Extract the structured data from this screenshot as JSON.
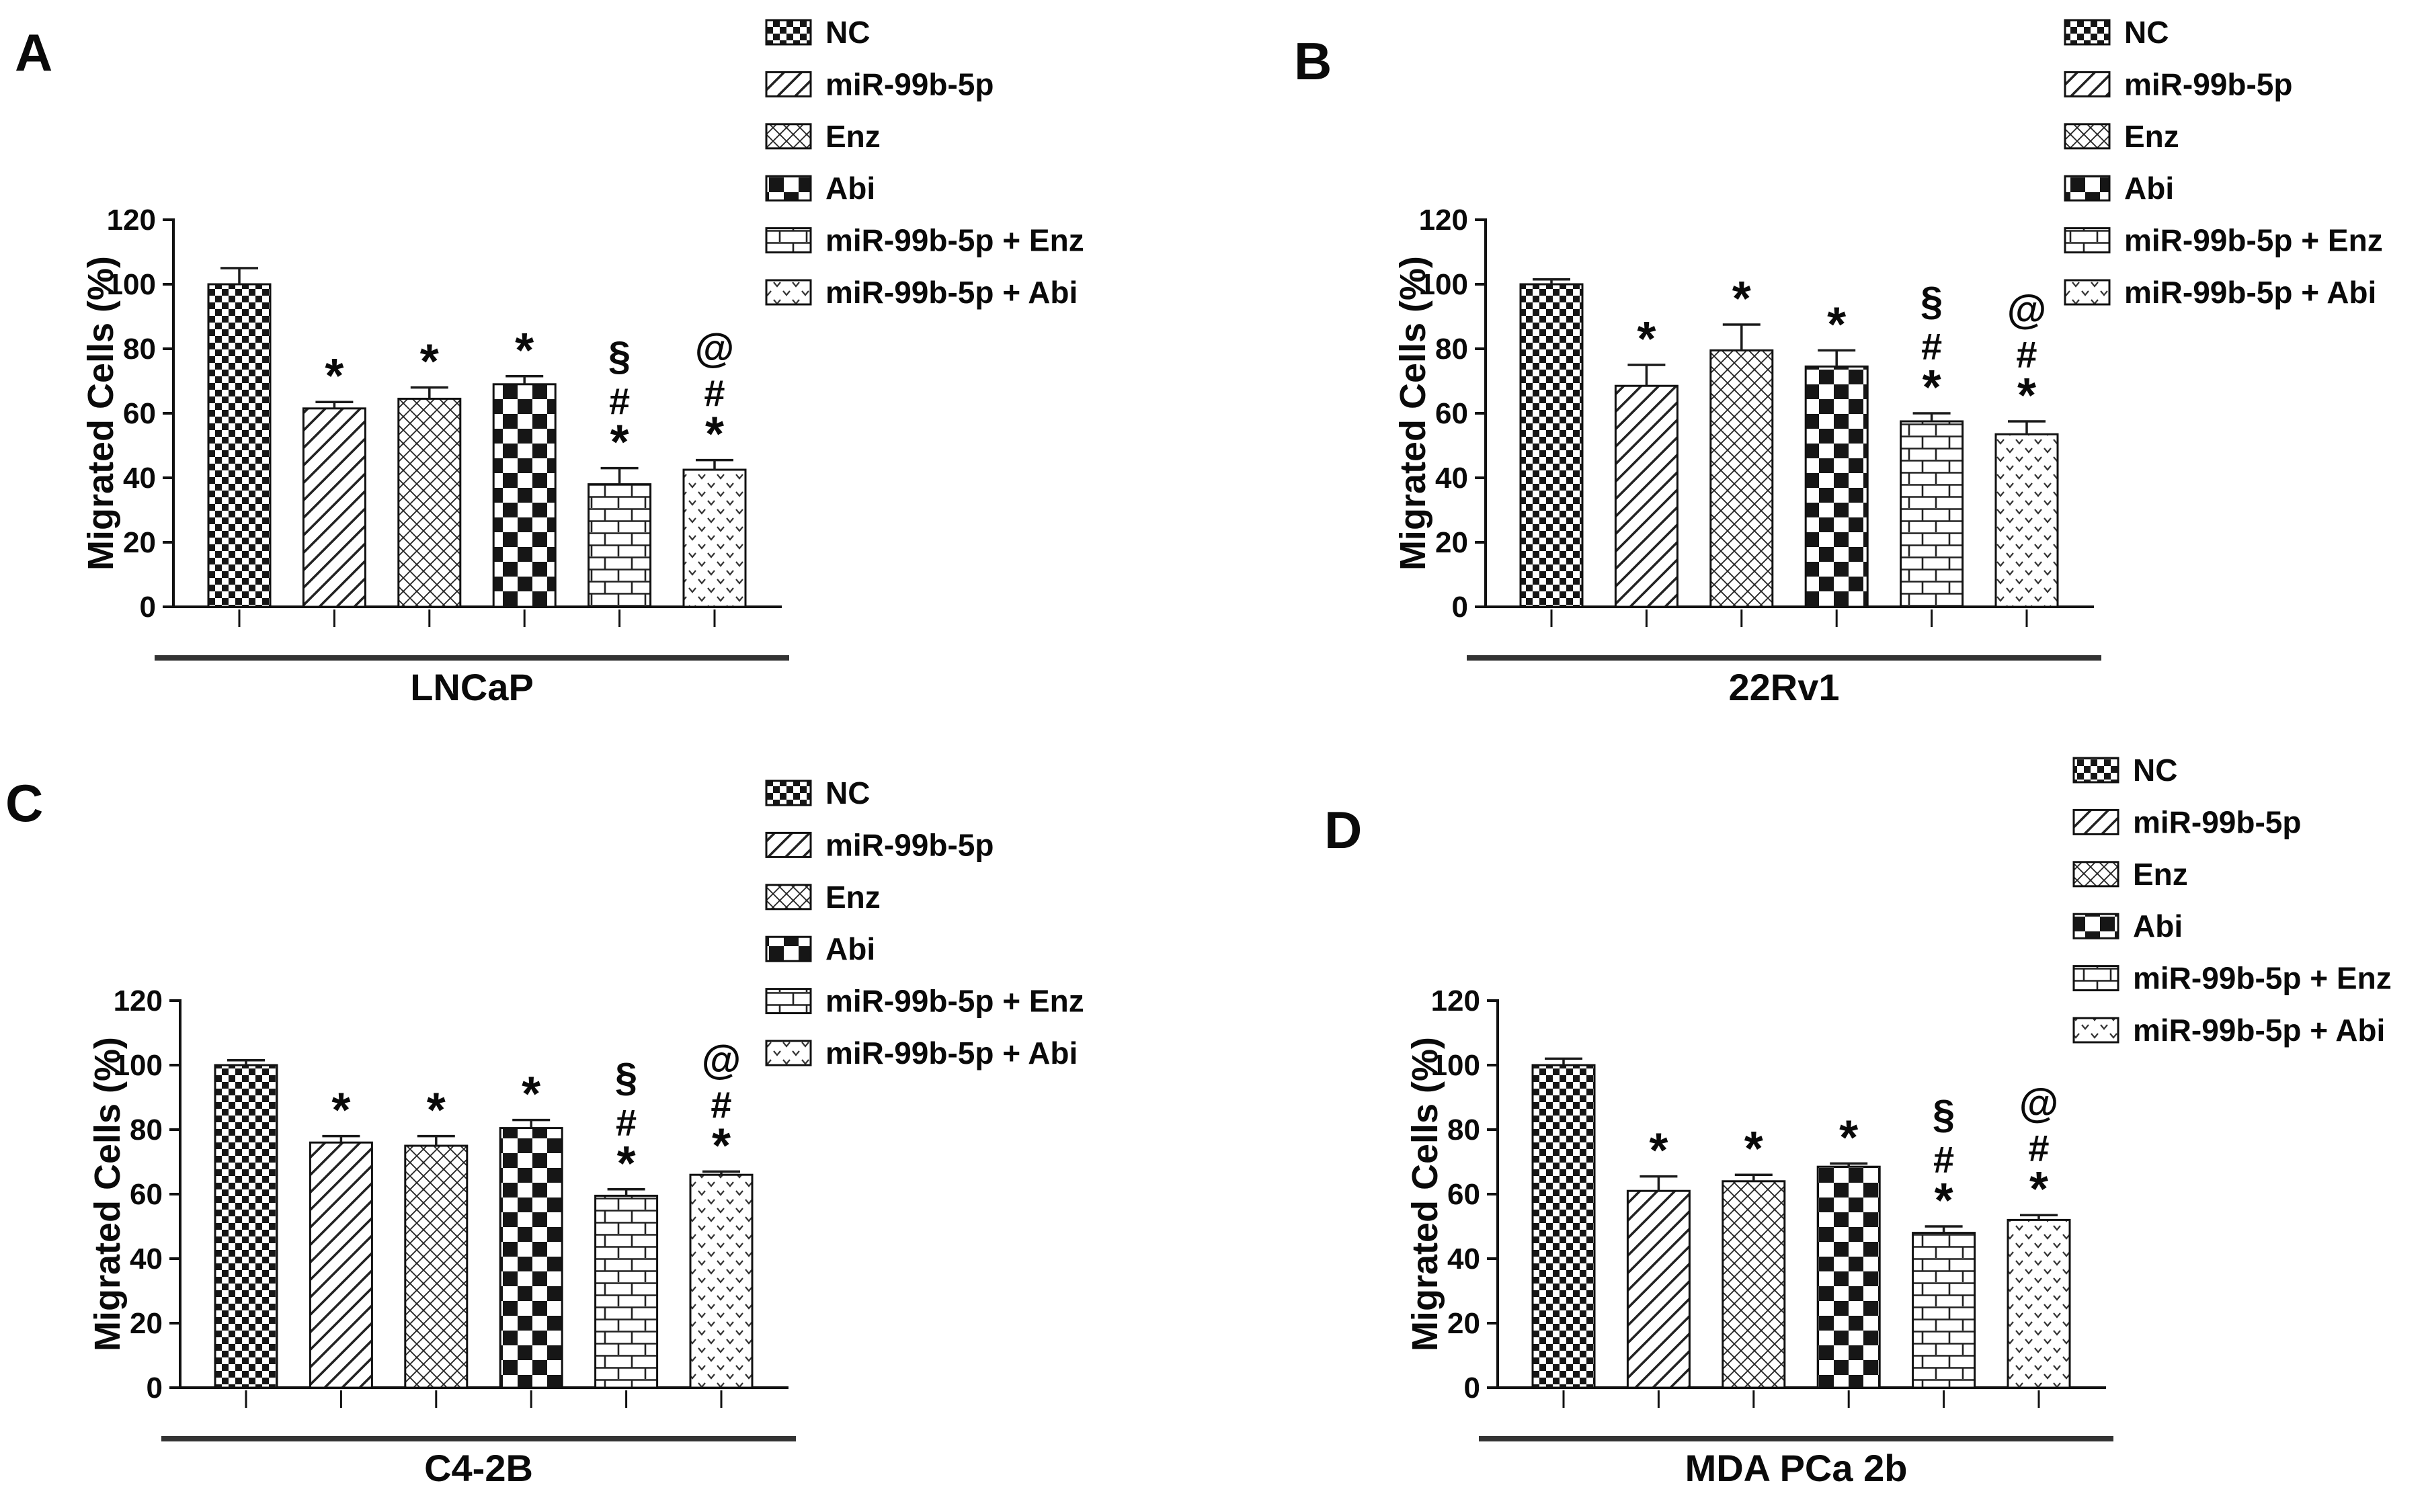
{
  "figure": {
    "kind": "four-panel scientific bar figure",
    "panel_letters": [
      "A",
      "B",
      "C",
      "D"
    ],
    "ink_color": "#111111",
    "background_color": "#ffffff"
  },
  "legend_items": [
    {
      "label": "NC",
      "pattern": "checker-small"
    },
    {
      "label": "miR-99b-5p",
      "pattern": "diag-lines"
    },
    {
      "label": "Enz",
      "pattern": "diag-weave"
    },
    {
      "label": "Abi",
      "pattern": "checker-large"
    },
    {
      "label": "miR-99b-5p + Enz",
      "pattern": "bricks"
    },
    {
      "label": "miR-99b-5p + Abi",
      "pattern": "dots-v"
    }
  ],
  "chart_data": [
    {
      "type": "bar",
      "panel": "A",
      "title": "LNCaP",
      "ylabel": "Migrated Cells (%)",
      "ylim": [
        0,
        120
      ],
      "yticks": [
        0,
        20,
        40,
        60,
        80,
        100,
        120
      ],
      "grid": false,
      "legend_position": "top-right",
      "categories": [
        "NC",
        "miR-99b-5p",
        "Enz",
        "Abi",
        "miR-99b-5p + Enz",
        "miR-99b-5p + Abi"
      ],
      "values": [
        100,
        61.5,
        64.5,
        69,
        38,
        42.5
      ],
      "errors": [
        5,
        2,
        3.5,
        2.5,
        5,
        3
      ],
      "annotations": [
        [],
        [
          "*"
        ],
        [
          "*"
        ],
        [
          "*"
        ],
        [
          "*",
          "#",
          "§"
        ],
        [
          "*",
          "#",
          "@"
        ]
      ]
    },
    {
      "type": "bar",
      "panel": "B",
      "title": "22Rv1",
      "ylabel": "Migrated Cells (%)",
      "ylim": [
        0,
        120
      ],
      "yticks": [
        0,
        20,
        40,
        60,
        80,
        100,
        120
      ],
      "grid": false,
      "legend_position": "top-right",
      "categories": [
        "NC",
        "miR-99b-5p",
        "Enz",
        "Abi",
        "miR-99b-5p + Enz",
        "miR-99b-5p + Abi"
      ],
      "values": [
        100,
        68.5,
        79.5,
        74.5,
        57.5,
        53.5
      ],
      "errors": [
        1.5,
        6.5,
        8,
        5,
        2.5,
        4
      ],
      "annotations": [
        [],
        [
          "*"
        ],
        [
          "*"
        ],
        [
          "*"
        ],
        [
          "*",
          "#",
          "§"
        ],
        [
          "*",
          "#",
          "@"
        ]
      ]
    },
    {
      "type": "bar",
      "panel": "C",
      "title": "C4-2B",
      "ylabel": "Migrated Cells (%)",
      "ylim": [
        0,
        120
      ],
      "yticks": [
        0,
        20,
        40,
        60,
        80,
        100,
        120
      ],
      "grid": false,
      "legend_position": "top-right",
      "categories": [
        "NC",
        "miR-99b-5p",
        "Enz",
        "Abi",
        "miR-99b-5p + Enz",
        "miR-99b-5p + Abi"
      ],
      "values": [
        100,
        76,
        75,
        80.5,
        59.5,
        66
      ],
      "errors": [
        1.5,
        2,
        3,
        2.5,
        2,
        1
      ],
      "annotations": [
        [],
        [
          "*"
        ],
        [
          "*"
        ],
        [
          "*"
        ],
        [
          "*",
          "#",
          "§"
        ],
        [
          "*",
          "#",
          "@"
        ]
      ]
    },
    {
      "type": "bar",
      "panel": "D",
      "title": "MDA PCa 2b",
      "ylabel": "Migrated Cells (%)",
      "ylim": [
        0,
        120
      ],
      "yticks": [
        0,
        20,
        40,
        60,
        80,
        100,
        120
      ],
      "grid": false,
      "legend_position": "top-right",
      "categories": [
        "NC",
        "miR-99b-5p",
        "Enz",
        "Abi",
        "miR-99b-5p + Enz",
        "miR-99b-5p + Abi"
      ],
      "values": [
        100,
        61,
        64,
        68.5,
        48,
        52
      ],
      "errors": [
        2,
        4.5,
        2,
        1,
        2,
        1.5
      ],
      "annotations": [
        [],
        [
          "*"
        ],
        [
          "*"
        ],
        [
          "*"
        ],
        [
          "*",
          "#",
          "§"
        ],
        [
          "*",
          "#",
          "@"
        ]
      ]
    }
  ]
}
